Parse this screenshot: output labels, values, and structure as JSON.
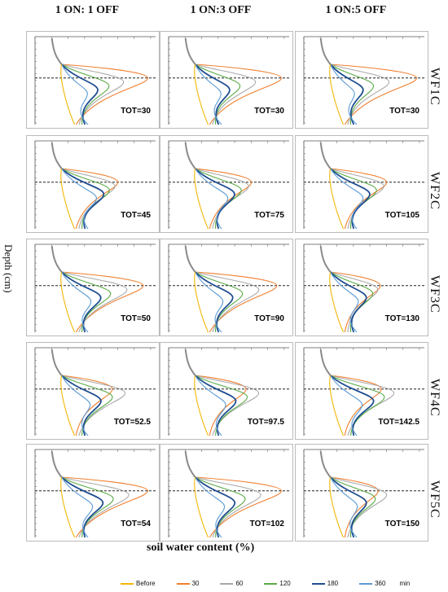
{
  "column_titles": [
    "1 ON: 1 OFF",
    "1 ON:3 OFF",
    "1 ON:5 OFF"
  ],
  "row_labels": [
    "WF1C",
    "WF2C",
    "WF3C",
    "WF4C",
    "WF5C"
  ],
  "ylabel": "Depth (cm)",
  "xlabel": "soil water content (%)",
  "legend": {
    "unit": "min",
    "items": [
      {
        "name": "Before",
        "color": "#f2b705"
      },
      {
        "name": "30",
        "color": "#f07f2e"
      },
      {
        "name": "60",
        "color": "#a9a9a9"
      },
      {
        "name": "120",
        "color": "#5aaa46"
      },
      {
        "name": "180",
        "color": "#1f4e91"
      },
      {
        "name": "360",
        "color": "#5b9bd5"
      }
    ]
  },
  "chart_data": [
    {
      "type": "line",
      "title": "TOT=30",
      "row": "WF1C",
      "col": "1 ON: 1 OFF",
      "peak": 0.95,
      "shape": [
        1.0,
        0.72,
        0.55,
        0.42,
        0.3,
        0.22,
        0.15
      ]
    },
    {
      "type": "line",
      "title": "TOT=30",
      "row": "WF1C",
      "col": "1 ON:3 OFF",
      "peak": 0.95,
      "shape": [
        1.0,
        0.7,
        0.52,
        0.4,
        0.3,
        0.22,
        0.15
      ]
    },
    {
      "type": "line",
      "title": "TOT=30",
      "row": "WF1C",
      "col": "1 ON:5 OFF",
      "peak": 0.95,
      "shape": [
        1.0,
        0.68,
        0.5,
        0.38,
        0.28,
        0.2,
        0.14
      ]
    },
    {
      "type": "line",
      "title": "TOT=45",
      "row": "WF2C",
      "col": "1 ON: 1 OFF",
      "peak": 0.62,
      "shape": [
        1.0,
        0.95,
        0.85,
        0.75,
        0.62,
        0.45,
        0.3
      ]
    },
    {
      "type": "line",
      "title": "TOT=75",
      "row": "WF2C",
      "col": "1 ON:3 OFF",
      "peak": 0.62,
      "shape": [
        1.0,
        0.95,
        0.82,
        0.7,
        0.58,
        0.42,
        0.28
      ]
    },
    {
      "type": "line",
      "title": "TOT=105",
      "row": "WF2C",
      "col": "1 ON:5 OFF",
      "peak": 0.62,
      "shape": [
        1.0,
        0.95,
        0.82,
        0.7,
        0.58,
        0.42,
        0.28
      ]
    },
    {
      "type": "line",
      "title": "TOT=50",
      "row": "WF3C",
      "col": "1 ON: 1 OFF",
      "peak": 0.9,
      "shape": [
        1.0,
        0.8,
        0.6,
        0.48,
        0.36,
        0.26,
        0.18
      ]
    },
    {
      "type": "line",
      "title": "TOT=90",
      "row": "WF3C",
      "col": "1 ON:3 OFF",
      "peak": 0.9,
      "shape": [
        1.0,
        0.78,
        0.58,
        0.46,
        0.34,
        0.25,
        0.17
      ]
    },
    {
      "type": "line",
      "title": "TOT=130",
      "row": "WF3C",
      "col": "1 ON:5 OFF",
      "peak": 0.55,
      "shape": [
        1.0,
        0.95,
        0.85,
        0.72,
        0.56,
        0.4,
        0.25
      ]
    },
    {
      "type": "line",
      "title": "TOT=52.5",
      "row": "WF4C",
      "col": "1 ON: 1 OFF",
      "peak": 0.7,
      "shape": [
        0.8,
        1.0,
        0.8,
        0.62,
        0.45,
        0.32,
        0.22
      ]
    },
    {
      "type": "line",
      "title": "TOT=97.5",
      "row": "WF4C",
      "col": "1 ON:3 OFF",
      "peak": 0.7,
      "shape": [
        0.8,
        1.0,
        0.82,
        0.64,
        0.48,
        0.34,
        0.22
      ]
    },
    {
      "type": "line",
      "title": "TOT=142.5",
      "row": "WF4C",
      "col": "1 ON:5 OFF",
      "peak": 0.7,
      "shape": [
        0.8,
        1.0,
        0.85,
        0.68,
        0.5,
        0.36,
        0.24
      ]
    },
    {
      "type": "line",
      "title": "TOT=54",
      "row": "WF5C",
      "col": "1 ON: 1 OFF",
      "peak": 0.95,
      "shape": [
        1.0,
        0.78,
        0.6,
        0.48,
        0.36,
        0.26,
        0.18
      ]
    },
    {
      "type": "line",
      "title": "TOT=102",
      "row": "WF5C",
      "col": "1 ON:3 OFF",
      "peak": 0.95,
      "shape": [
        1.0,
        0.76,
        0.58,
        0.46,
        0.34,
        0.25,
        0.17
      ]
    },
    {
      "type": "line",
      "title": "TOT=150",
      "row": "WF5C",
      "col": "1 ON:5 OFF",
      "peak": 0.62,
      "shape": [
        0.85,
        1.0,
        0.8,
        0.64,
        0.48,
        0.34,
        0.22
      ]
    }
  ]
}
